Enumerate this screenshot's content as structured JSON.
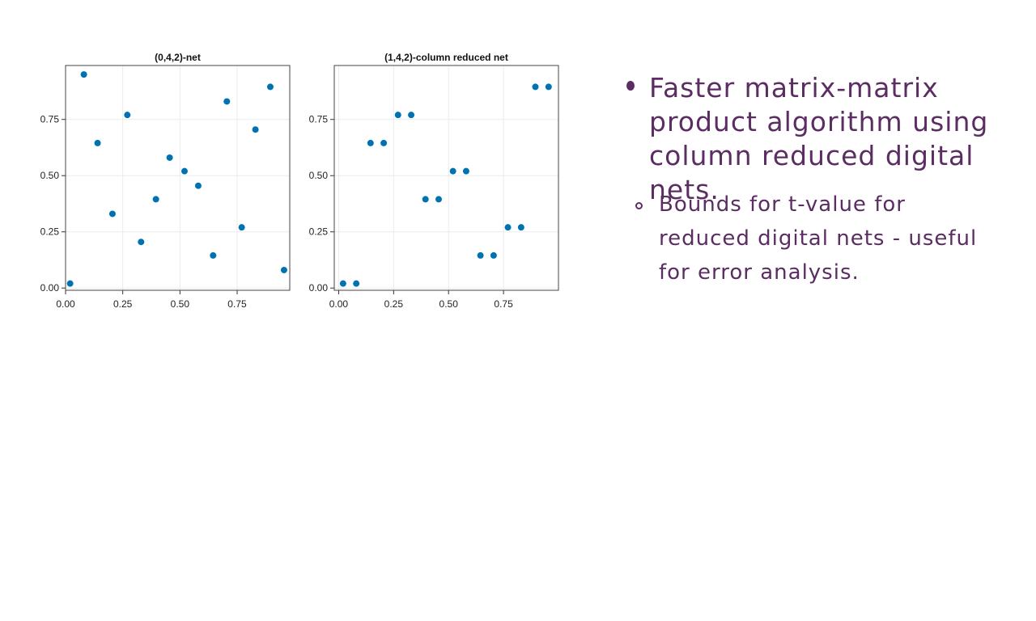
{
  "chart_data": [
    {
      "type": "scatter",
      "title": "(0,4,2)-net",
      "xlabel": "",
      "ylabel": "",
      "xlim": [
        0.0,
        0.98
      ],
      "ylim": [
        -0.01,
        0.99
      ],
      "xticks": [
        "0.00",
        "0.25",
        "0.50",
        "0.75"
      ],
      "yticks": [
        "0.00",
        "0.25",
        "0.50",
        "0.75"
      ],
      "grid": true,
      "color": "#0072b2",
      "points": [
        {
          "x": 0.02,
          "y": 0.02
        },
        {
          "x": 0.08,
          "y": 0.95
        },
        {
          "x": 0.14,
          "y": 0.645
        },
        {
          "x": 0.205,
          "y": 0.33
        },
        {
          "x": 0.27,
          "y": 0.77
        },
        {
          "x": 0.33,
          "y": 0.205
        },
        {
          "x": 0.395,
          "y": 0.395
        },
        {
          "x": 0.455,
          "y": 0.58
        },
        {
          "x": 0.52,
          "y": 0.52
        },
        {
          "x": 0.58,
          "y": 0.455
        },
        {
          "x": 0.645,
          "y": 0.145
        },
        {
          "x": 0.705,
          "y": 0.83
        },
        {
          "x": 0.77,
          "y": 0.27
        },
        {
          "x": 0.83,
          "y": 0.705
        },
        {
          "x": 0.895,
          "y": 0.895
        },
        {
          "x": 0.955,
          "y": 0.08
        }
      ]
    },
    {
      "type": "scatter",
      "title": "(1,4,2)-column reduced net",
      "xlabel": "",
      "ylabel": "",
      "xlim": [
        -0.02,
        1.0
      ],
      "ylim": [
        -0.01,
        0.99
      ],
      "xticks": [
        "0.00",
        "0.25",
        "0.50",
        "0.75"
      ],
      "yticks": [
        "0.00",
        "0.25",
        "0.50",
        "0.75"
      ],
      "grid": true,
      "color": "#0072b2",
      "points": [
        {
          "x": 0.02,
          "y": 0.02
        },
        {
          "x": 0.08,
          "y": 0.02
        },
        {
          "x": 0.145,
          "y": 0.645
        },
        {
          "x": 0.205,
          "y": 0.645
        },
        {
          "x": 0.27,
          "y": 0.77
        },
        {
          "x": 0.33,
          "y": 0.77
        },
        {
          "x": 0.395,
          "y": 0.395
        },
        {
          "x": 0.455,
          "y": 0.395
        },
        {
          "x": 0.52,
          "y": 0.52
        },
        {
          "x": 0.58,
          "y": 0.52
        },
        {
          "x": 0.645,
          "y": 0.145
        },
        {
          "x": 0.705,
          "y": 0.145
        },
        {
          "x": 0.77,
          "y": 0.27
        },
        {
          "x": 0.83,
          "y": 0.27
        },
        {
          "x": 0.895,
          "y": 0.895
        },
        {
          "x": 0.955,
          "y": 0.895
        }
      ]
    }
  ],
  "notes": [
    {
      "text": "Faster matrix-matrix product algorithm using column reduced digital nets."
    },
    {
      "text": "Bounds for t-value for reduced digital nets - useful for error analysis."
    }
  ]
}
